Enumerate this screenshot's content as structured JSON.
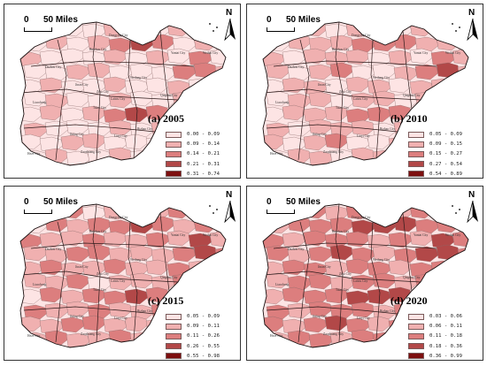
{
  "scale_bar": {
    "zero_label": "0",
    "length_label": "50 Miles"
  },
  "north_label": "N",
  "city_labels": [
    "Dongying City",
    "Binzhou City",
    "Dezhou City",
    "Jinan City",
    "Zibo City",
    "Weifang City",
    "Yantai City",
    "Weihai City",
    "Qingdao City",
    "Rizhao City",
    "Linyi City",
    "Zaozhuang City",
    "Jining City",
    "Heze City",
    "Liaocheng",
    "Taian City",
    "Laiwu City"
  ],
  "panels": [
    {
      "title": "(a) 2005",
      "legend": [
        "0.00 - 0.09",
        "0.09 - 0.14",
        "0.14 - 0.21",
        "0.21 - 0.31",
        "0.31 - 0.74"
      ],
      "levels": [
        0,
        1,
        0,
        0,
        1,
        0,
        0,
        1,
        2,
        0,
        0,
        1,
        0,
        1,
        2,
        3,
        2,
        0,
        1,
        0,
        1,
        0,
        0,
        0,
        1,
        0,
        1,
        0,
        2,
        0,
        0,
        0,
        1,
        1,
        0,
        0,
        0,
        2,
        2,
        1,
        0,
        1,
        0,
        0,
        1,
        0,
        0,
        1,
        0,
        0
      ]
    },
    {
      "title": "(b) 2010",
      "legend": [
        "0.05 - 0.09",
        "0.09 - 0.15",
        "0.15 - 0.27",
        "0.27 - 0.54",
        "0.54 - 0.89"
      ],
      "levels": [
        0,
        1,
        1,
        0,
        1,
        1,
        0,
        1,
        2,
        0,
        0,
        1,
        1,
        1,
        2,
        2,
        2,
        1,
        1,
        0,
        1,
        0,
        1,
        1,
        1,
        0,
        1,
        0,
        2,
        1,
        1,
        0,
        1,
        2,
        0,
        0,
        1,
        2,
        3,
        1,
        0,
        1,
        1,
        0,
        1,
        1,
        0,
        1,
        1,
        0
      ]
    },
    {
      "title": "(c) 2015",
      "legend": [
        "0.05 - 0.09",
        "0.09 - 0.11",
        "0.11 - 0.26",
        "0.26 - 0.55",
        "0.55 - 0.98"
      ],
      "levels": [
        1,
        1,
        2,
        0,
        1,
        1,
        1,
        2,
        2,
        1,
        0,
        2,
        1,
        2,
        2,
        3,
        2,
        1,
        2,
        1,
        2,
        1,
        1,
        2,
        1,
        1,
        2,
        1,
        3,
        1,
        1,
        1,
        2,
        2,
        1,
        1,
        1,
        2,
        3,
        2,
        1,
        2,
        1,
        1,
        2,
        1,
        1,
        2,
        1,
        1
      ]
    },
    {
      "title": "(d) 2020",
      "legend": [
        "0.03 - 0.06",
        "0.06 - 0.11",
        "0.11 - 0.18",
        "0.18 - 0.36",
        "0.36 - 0.99"
      ],
      "levels": [
        1,
        2,
        2,
        1,
        2,
        2,
        1,
        2,
        3,
        1,
        1,
        2,
        2,
        2,
        3,
        3,
        3,
        2,
        2,
        1,
        2,
        1,
        2,
        2,
        2,
        1,
        2,
        1,
        3,
        2,
        2,
        1,
        2,
        3,
        2,
        1,
        2,
        3,
        3,
        2,
        1,
        2,
        2,
        1,
        2,
        2,
        1,
        2,
        2,
        1
      ]
    }
  ],
  "palette": [
    "#fde4e4",
    "#f0b0b0",
    "#dc7e7e",
    "#b24848",
    "#7d0f0f"
  ]
}
